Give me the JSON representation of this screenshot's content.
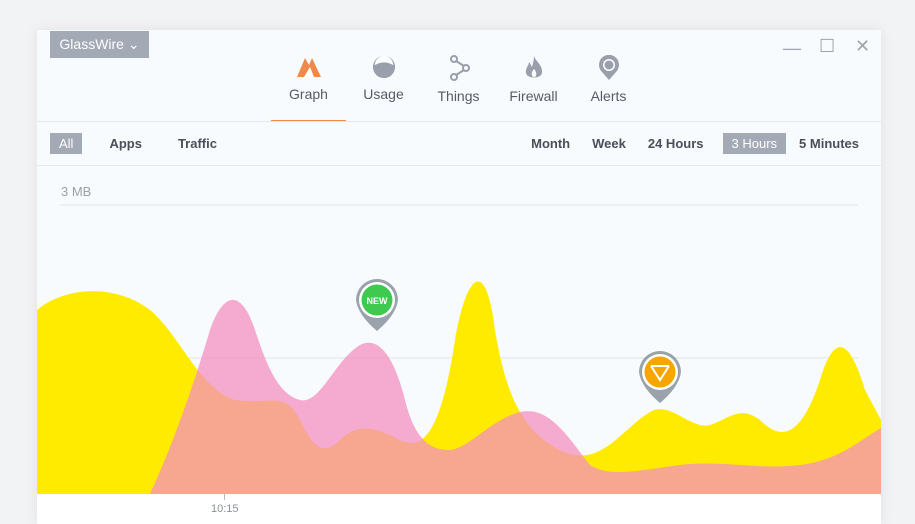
{
  "app": {
    "brand": "GlassWire"
  },
  "nav": [
    {
      "label": "Graph",
      "icon": "graph-icon",
      "active": true
    },
    {
      "label": "Usage",
      "icon": "usage-icon"
    },
    {
      "label": "Things",
      "icon": "things-icon"
    },
    {
      "label": "Firewall",
      "icon": "firewall-icon"
    },
    {
      "label": "Alerts",
      "icon": "alerts-icon"
    }
  ],
  "filters": [
    {
      "label": "All",
      "active": true
    },
    {
      "label": "Apps"
    },
    {
      "label": "Traffic"
    }
  ],
  "ranges": [
    {
      "label": "Month"
    },
    {
      "label": "Week"
    },
    {
      "label": "24  Hours"
    },
    {
      "label": "3  Hours",
      "active": true
    },
    {
      "label": "5 Minutes"
    }
  ],
  "graph": {
    "scale_label": "3 MB",
    "time_tick": "10:15",
    "new_badge": "NEW",
    "colors": {
      "incoming": "#ffeb00",
      "outgoing": "#f48fc0",
      "accent": "#f08a4b"
    }
  }
}
